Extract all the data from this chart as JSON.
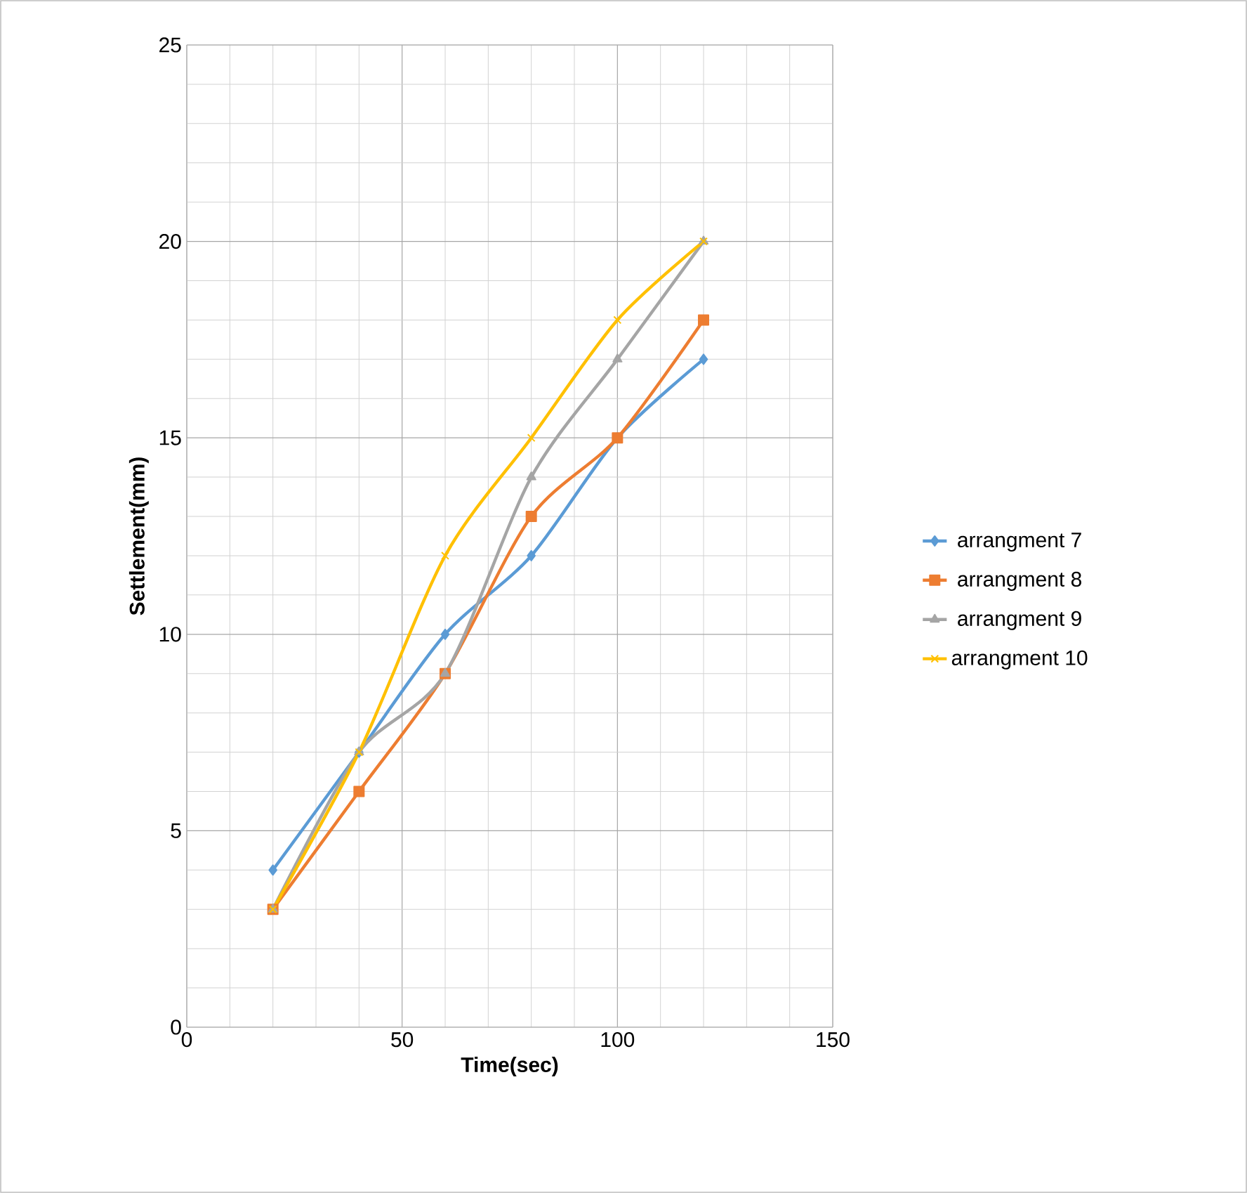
{
  "chart_data": {
    "type": "line",
    "xlabel": "Time(sec)",
    "ylabel": "Settlement(mm)",
    "xlim": [
      0,
      150
    ],
    "xticks": [
      0,
      50,
      100,
      150
    ],
    "ylim": [
      0,
      25
    ],
    "yticks": [
      0,
      5,
      10,
      15,
      20,
      25
    ],
    "grid": true,
    "legend": "right",
    "line_style": "solid",
    "series": [
      {
        "name": "arrangment 7",
        "color": "#5b9bd5",
        "marker": "diamond",
        "x": [
          20,
          40,
          60,
          80,
          100,
          120
        ],
        "values": [
          4,
          7,
          10,
          12,
          15,
          17
        ]
      },
      {
        "name": "arrangment 8",
        "color": "#ed7d31",
        "marker": "square",
        "x": [
          20,
          40,
          60,
          80,
          100,
          120
        ],
        "values": [
          3,
          6,
          9,
          13,
          15,
          18
        ]
      },
      {
        "name": "arrangment 9",
        "color": "#a5a5a5",
        "marker": "triangle",
        "x": [
          20,
          40,
          60,
          80,
          100,
          120
        ],
        "values": [
          3,
          7,
          9,
          14,
          17,
          20
        ]
      },
      {
        "name": "arrangment 10",
        "color": "#ffc000",
        "marker": "cross",
        "x": [
          20,
          40,
          60,
          80,
          100,
          120
        ],
        "values": [
          3,
          7,
          12,
          15,
          18,
          20
        ]
      }
    ]
  }
}
